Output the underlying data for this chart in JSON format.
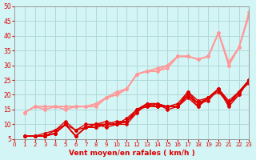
{
  "xlabel": "Vent moyen/en rafales ( km/h )",
  "ylabel": "",
  "xlim": [
    0,
    23
  ],
  "ylim": [
    5,
    50
  ],
  "yticks": [
    5,
    10,
    15,
    20,
    25,
    30,
    35,
    40,
    45,
    50
  ],
  "xticks": [
    0,
    1,
    2,
    3,
    4,
    5,
    6,
    7,
    8,
    9,
    10,
    11,
    12,
    13,
    14,
    15,
    16,
    17,
    18,
    19,
    20,
    21,
    22,
    23
  ],
  "bg_color": "#d4f5f5",
  "grid_color": "#b0d8d8",
  "line_color_dark": "#dd0000",
  "line_color_light": "#ff9999",
  "series": [
    [
      6,
      6,
      6,
      7,
      10,
      6,
      9,
      9,
      10,
      10,
      11,
      15,
      17,
      16,
      16,
      16,
      20,
      16,
      19,
      22,
      17,
      21,
      25
    ],
    [
      6,
      6,
      6,
      7,
      10,
      6,
      9,
      9,
      10,
      11,
      11,
      15,
      16,
      17,
      15,
      16,
      19,
      16,
      19,
      21,
      17,
      20,
      25
    ],
    [
      6,
      6,
      6,
      7,
      10,
      8,
      9,
      10,
      10,
      10,
      11,
      14,
      17,
      16,
      16,
      16,
      21,
      17,
      19,
      22,
      18,
      21,
      24
    ],
    [
      6,
      6,
      6,
      7,
      10,
      6,
      9,
      10,
      10,
      10,
      11,
      15,
      16,
      16,
      16,
      16,
      20,
      17,
      18,
      22,
      16,
      20,
      25
    ],
    [
      6,
      6,
      6,
      8,
      10,
      6,
      9,
      10,
      9,
      10,
      10,
      14,
      17,
      17,
      16,
      16,
      20,
      17,
      19,
      22,
      17,
      21,
      25
    ],
    [
      6,
      6,
      7,
      8,
      11,
      8,
      10,
      10,
      11,
      10,
      12,
      15,
      17,
      17,
      16,
      17,
      21,
      18,
      19,
      22,
      17,
      21,
      25
    ],
    [
      14,
      16,
      16,
      16,
      16,
      16,
      16,
      17,
      19,
      20,
      22,
      27,
      28,
      28,
      29,
      33,
      33,
      32,
      33,
      41,
      31,
      36,
      48
    ],
    [
      14,
      16,
      16,
      16,
      16,
      16,
      16,
      17,
      19,
      20,
      22,
      27,
      28,
      28,
      30,
      33,
      33,
      32,
      33,
      41,
      30,
      36,
      47
    ],
    [
      14,
      16,
      15,
      16,
      15,
      16,
      16,
      16,
      19,
      21,
      22,
      27,
      28,
      29,
      30,
      33,
      33,
      32,
      33,
      41,
      30,
      36,
      47
    ]
  ],
  "series_colors": [
    "#dd0000",
    "#dd0000",
    "#dd0000",
    "#dd0000",
    "#dd0000",
    "#dd0000",
    "#ff9999",
    "#ff9999",
    "#ff9999"
  ],
  "series_lw": [
    1.0,
    1.0,
    1.0,
    1.0,
    1.0,
    1.0,
    1.2,
    1.2,
    1.2
  ],
  "marker": "D",
  "marker_size": 2.0
}
